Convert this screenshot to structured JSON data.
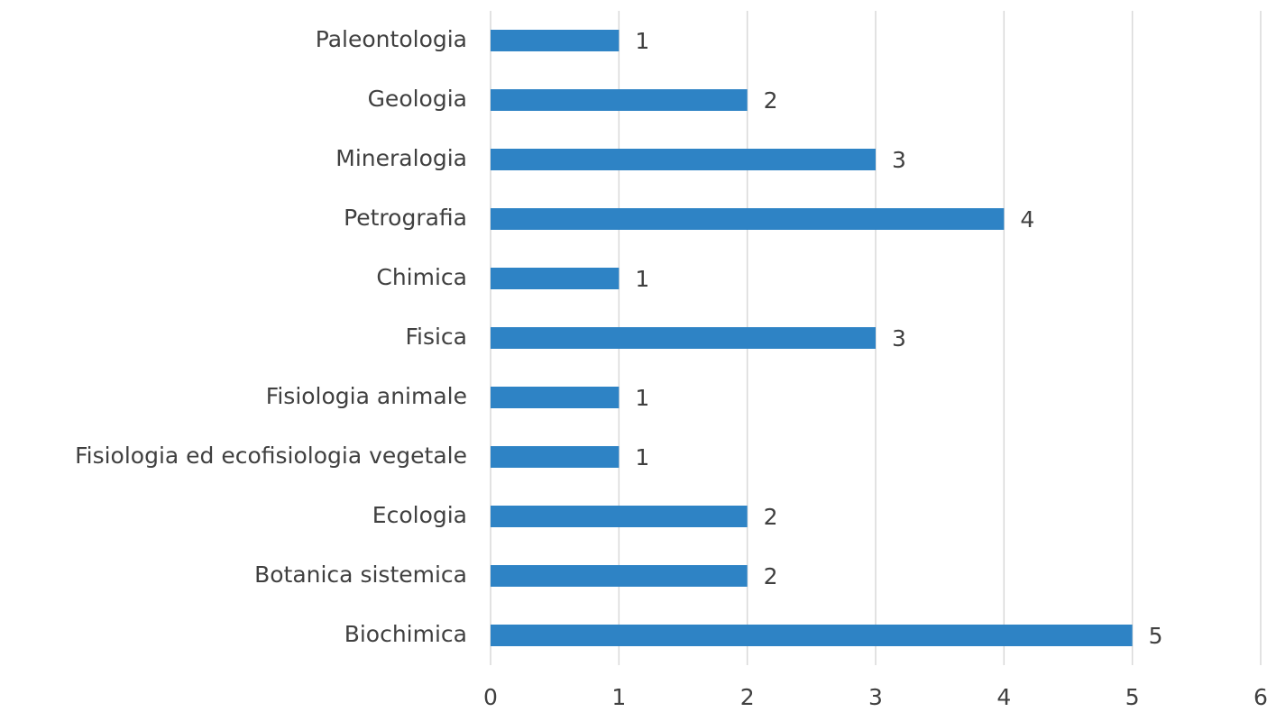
{
  "chart_data": {
    "type": "bar",
    "orientation": "horizontal",
    "categories": [
      "Paleontologia",
      "Geologia",
      "Mineralogia",
      "Petrografia",
      "Chimica",
      "Fisica",
      "Fisiologia animale",
      "Fisiologia ed ecofisiologia vegetale",
      "Ecologia",
      "Botanica sistemica",
      "Biochimica"
    ],
    "values": [
      1,
      2,
      3,
      4,
      1,
      3,
      1,
      1,
      2,
      2,
      5
    ],
    "color": "#2e83c5",
    "xlim": [
      0,
      6
    ],
    "xticks": [
      0,
      1,
      2,
      3,
      4,
      5,
      6
    ],
    "grid": true
  }
}
